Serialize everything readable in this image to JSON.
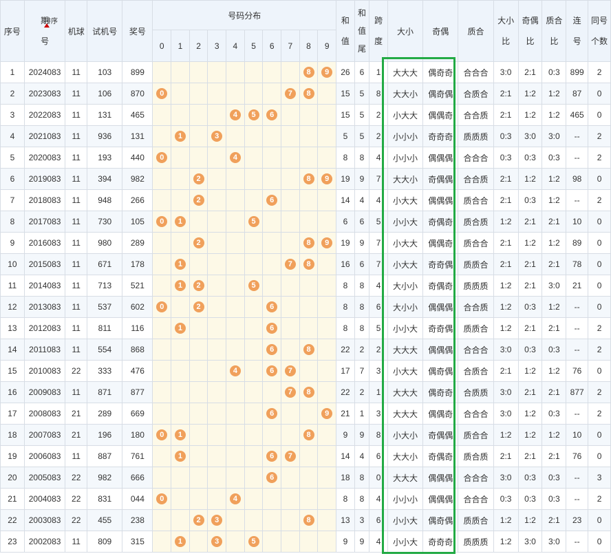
{
  "headers": {
    "seq": "序号",
    "period_1": "期",
    "period_2": "号",
    "sort_label": "排序",
    "machine_ball": "机球",
    "trial": "试机号",
    "prize": "奖号",
    "distribution": "号码分布",
    "digits": [
      "0",
      "1",
      "2",
      "3",
      "4",
      "5",
      "6",
      "7",
      "8",
      "9"
    ],
    "sum_1": "和",
    "sum_2": "值",
    "sumtail_1": "和",
    "sumtail_2": "值",
    "sumtail_3": "尾",
    "span_1": "跨",
    "span_2": "度",
    "big_small": "大小",
    "odd_even": "奇偶",
    "prime_comp": "质合",
    "bs_ratio_1": "大小",
    "bs_ratio_2": "比",
    "oe_ratio_1": "奇偶",
    "oe_ratio_2": "比",
    "pc_ratio_1": "质合",
    "pc_ratio_2": "比",
    "consec_1": "连",
    "consec_2": "号",
    "same_1": "同号",
    "same_2": "个数"
  },
  "rows": [
    {
      "seq": "1",
      "period": "2024083",
      "ball": "11",
      "trial": "103",
      "prize": "899",
      "balls": [
        8,
        9
      ],
      "ball_labels": [
        "8",
        "9"
      ],
      "sum": "26",
      "tail": "6",
      "span": "1",
      "bs": "大大大",
      "oe": "偶奇奇",
      "pc": "合合合",
      "bsr": "3:0",
      "oer": "2:1",
      "pcr": "0:3",
      "consec": "899",
      "same": "2"
    },
    {
      "seq": "2",
      "period": "2023083",
      "ball": "11",
      "trial": "106",
      "prize": "870",
      "balls": [
        0,
        7,
        8
      ],
      "ball_labels": [
        "0",
        "7",
        "8"
      ],
      "sum": "15",
      "tail": "5",
      "span": "8",
      "bs": "大大小",
      "oe": "偶奇偶",
      "pc": "合质合",
      "bsr": "2:1",
      "oer": "1:2",
      "pcr": "1:2",
      "consec": "87",
      "same": "0"
    },
    {
      "seq": "3",
      "period": "2022083",
      "ball": "11",
      "trial": "131",
      "prize": "465",
      "balls": [
        4,
        5,
        6
      ],
      "ball_labels": [
        "4",
        "5",
        "6"
      ],
      "sum": "15",
      "tail": "5",
      "span": "2",
      "bs": "小大大",
      "oe": "偶偶奇",
      "pc": "合合质",
      "bsr": "2:1",
      "oer": "1:2",
      "pcr": "1:2",
      "consec": "465",
      "same": "0"
    },
    {
      "seq": "4",
      "period": "2021083",
      "ball": "11",
      "trial": "936",
      "prize": "131",
      "balls": [
        1,
        3
      ],
      "ball_labels": [
        "1",
        "3"
      ],
      "sum": "5",
      "tail": "5",
      "span": "2",
      "bs": "小小小",
      "oe": "奇奇奇",
      "pc": "质质质",
      "bsr": "0:3",
      "oer": "3:0",
      "pcr": "3:0",
      "consec": "--",
      "same": "2"
    },
    {
      "seq": "5",
      "period": "2020083",
      "ball": "11",
      "trial": "193",
      "prize": "440",
      "balls": [
        0,
        4
      ],
      "ball_labels": [
        "0",
        "4"
      ],
      "sum": "8",
      "tail": "8",
      "span": "4",
      "bs": "小小小",
      "oe": "偶偶偶",
      "pc": "合合合",
      "bsr": "0:3",
      "oer": "0:3",
      "pcr": "0:3",
      "consec": "--",
      "same": "2"
    },
    {
      "seq": "6",
      "period": "2019083",
      "ball": "11",
      "trial": "394",
      "prize": "982",
      "balls": [
        2,
        8,
        9
      ],
      "ball_labels": [
        "2",
        "8",
        "9"
      ],
      "sum": "19",
      "tail": "9",
      "span": "7",
      "bs": "大大小",
      "oe": "奇偶偶",
      "pc": "合合质",
      "bsr": "2:1",
      "oer": "1:2",
      "pcr": "1:2",
      "consec": "98",
      "same": "0"
    },
    {
      "seq": "7",
      "period": "2018083",
      "ball": "11",
      "trial": "948",
      "prize": "266",
      "balls": [
        2,
        6
      ],
      "ball_labels": [
        "2",
        "6"
      ],
      "sum": "14",
      "tail": "4",
      "span": "4",
      "bs": "小大大",
      "oe": "偶偶偶",
      "pc": "质合合",
      "bsr": "2:1",
      "oer": "0:3",
      "pcr": "1:2",
      "consec": "--",
      "same": "2"
    },
    {
      "seq": "8",
      "period": "2017083",
      "ball": "11",
      "trial": "730",
      "prize": "105",
      "balls": [
        0,
        1,
        5
      ],
      "ball_labels": [
        "0",
        "1",
        "5"
      ],
      "sum": "6",
      "tail": "6",
      "span": "5",
      "bs": "小小大",
      "oe": "奇偶奇",
      "pc": "质合质",
      "bsr": "1:2",
      "oer": "2:1",
      "pcr": "2:1",
      "consec": "10",
      "same": "0"
    },
    {
      "seq": "9",
      "period": "2016083",
      "ball": "11",
      "trial": "980",
      "prize": "289",
      "balls": [
        2,
        8,
        9
      ],
      "ball_labels": [
        "2",
        "8",
        "9"
      ],
      "sum": "19",
      "tail": "9",
      "span": "7",
      "bs": "小大大",
      "oe": "偶偶奇",
      "pc": "质合合",
      "bsr": "2:1",
      "oer": "1:2",
      "pcr": "1:2",
      "consec": "89",
      "same": "0"
    },
    {
      "seq": "10",
      "period": "2015083",
      "ball": "11",
      "trial": "671",
      "prize": "178",
      "balls": [
        1,
        7,
        8
      ],
      "ball_labels": [
        "1",
        "7",
        "8"
      ],
      "sum": "16",
      "tail": "6",
      "span": "7",
      "bs": "小大大",
      "oe": "奇奇偶",
      "pc": "质质合",
      "bsr": "2:1",
      "oer": "2:1",
      "pcr": "2:1",
      "consec": "78",
      "same": "0"
    },
    {
      "seq": "11",
      "period": "2014083",
      "ball": "11",
      "trial": "713",
      "prize": "521",
      "balls": [
        1,
        2,
        5
      ],
      "ball_labels": [
        "1",
        "2",
        "5"
      ],
      "sum": "8",
      "tail": "8",
      "span": "4",
      "bs": "大小小",
      "oe": "奇偶奇",
      "pc": "质质质",
      "bsr": "1:2",
      "oer": "2:1",
      "pcr": "3:0",
      "consec": "21",
      "same": "0"
    },
    {
      "seq": "12",
      "period": "2013083",
      "ball": "11",
      "trial": "537",
      "prize": "602",
      "balls": [
        0,
        2,
        6
      ],
      "ball_labels": [
        "0",
        "2",
        "6"
      ],
      "sum": "8",
      "tail": "8",
      "span": "6",
      "bs": "大小小",
      "oe": "偶偶偶",
      "pc": "合合质",
      "bsr": "1:2",
      "oer": "0:3",
      "pcr": "1:2",
      "consec": "--",
      "same": "0"
    },
    {
      "seq": "13",
      "period": "2012083",
      "ball": "11",
      "trial": "811",
      "prize": "116",
      "balls": [
        1,
        6
      ],
      "ball_labels": [
        "1",
        "6"
      ],
      "sum": "8",
      "tail": "8",
      "span": "5",
      "bs": "小小大",
      "oe": "奇奇偶",
      "pc": "质质合",
      "bsr": "1:2",
      "oer": "2:1",
      "pcr": "2:1",
      "consec": "--",
      "same": "2"
    },
    {
      "seq": "14",
      "period": "2011083",
      "ball": "11",
      "trial": "554",
      "prize": "868",
      "balls": [
        6,
        8
      ],
      "ball_labels": [
        "6",
        "8"
      ],
      "sum": "22",
      "tail": "2",
      "span": "2",
      "bs": "大大大",
      "oe": "偶偶偶",
      "pc": "合合合",
      "bsr": "3:0",
      "oer": "0:3",
      "pcr": "0:3",
      "consec": "--",
      "same": "2"
    },
    {
      "seq": "15",
      "period": "2010083",
      "ball": "22",
      "trial": "333",
      "prize": "476",
      "balls": [
        4,
        6,
        7
      ],
      "ball_labels": [
        "4",
        "6",
        "7"
      ],
      "sum": "17",
      "tail": "7",
      "span": "3",
      "bs": "小大大",
      "oe": "偶奇偶",
      "pc": "合质合",
      "bsr": "2:1",
      "oer": "1:2",
      "pcr": "1:2",
      "consec": "76",
      "same": "0"
    },
    {
      "seq": "16",
      "period": "2009083",
      "ball": "11",
      "trial": "871",
      "prize": "877",
      "balls": [
        7,
        8
      ],
      "ball_labels": [
        "7",
        "8"
      ],
      "sum": "22",
      "tail": "2",
      "span": "1",
      "bs": "大大大",
      "oe": "偶奇奇",
      "pc": "合质质",
      "bsr": "3:0",
      "oer": "2:1",
      "pcr": "2:1",
      "consec": "877",
      "same": "2"
    },
    {
      "seq": "17",
      "period": "2008083",
      "ball": "21",
      "trial": "289",
      "prize": "669",
      "balls": [
        6,
        9
      ],
      "ball_labels": [
        "6",
        "9"
      ],
      "sum": "21",
      "tail": "1",
      "span": "3",
      "bs": "大大大",
      "oe": "偶偶奇",
      "pc": "合合合",
      "bsr": "3:0",
      "oer": "1:2",
      "pcr": "0:3",
      "consec": "--",
      "same": "2"
    },
    {
      "seq": "18",
      "period": "2007083",
      "ball": "21",
      "trial": "196",
      "prize": "180",
      "balls": [
        0,
        1,
        8
      ],
      "ball_labels": [
        "0",
        "1",
        "8"
      ],
      "sum": "9",
      "tail": "9",
      "span": "8",
      "bs": "小大小",
      "oe": "奇偶偶",
      "pc": "质合合",
      "bsr": "1:2",
      "oer": "1:2",
      "pcr": "1:2",
      "consec": "10",
      "same": "0"
    },
    {
      "seq": "19",
      "period": "2006083",
      "ball": "11",
      "trial": "887",
      "prize": "761",
      "balls": [
        1,
        6,
        7
      ],
      "ball_labels": [
        "1",
        "6",
        "7"
      ],
      "sum": "14",
      "tail": "4",
      "span": "6",
      "bs": "大大小",
      "oe": "奇偶奇",
      "pc": "质合质",
      "bsr": "2:1",
      "oer": "2:1",
      "pcr": "2:1",
      "consec": "76",
      "same": "0"
    },
    {
      "seq": "20",
      "period": "2005083",
      "ball": "22",
      "trial": "982",
      "prize": "666",
      "balls": [
        6
      ],
      "ball_labels": [
        "6"
      ],
      "sum": "18",
      "tail": "8",
      "span": "0",
      "bs": "大大大",
      "oe": "偶偶偶",
      "pc": "合合合",
      "bsr": "3:0",
      "oer": "0:3",
      "pcr": "0:3",
      "consec": "--",
      "same": "3"
    },
    {
      "seq": "21",
      "period": "2004083",
      "ball": "22",
      "trial": "831",
      "prize": "044",
      "balls": [
        0,
        4
      ],
      "ball_labels": [
        "0",
        "4"
      ],
      "sum": "8",
      "tail": "8",
      "span": "4",
      "bs": "小小小",
      "oe": "偶偶偶",
      "pc": "合合合",
      "bsr": "0:3",
      "oer": "0:3",
      "pcr": "0:3",
      "consec": "--",
      "same": "2"
    },
    {
      "seq": "22",
      "period": "2003083",
      "ball": "22",
      "trial": "455",
      "prize": "238",
      "balls": [
        2,
        3,
        8
      ],
      "ball_labels": [
        "2",
        "3",
        "8"
      ],
      "sum": "13",
      "tail": "3",
      "span": "6",
      "bs": "小小大",
      "oe": "偶奇偶",
      "pc": "质质合",
      "bsr": "1:2",
      "oer": "1:2",
      "pcr": "2:1",
      "consec": "23",
      "same": "0"
    },
    {
      "seq": "23",
      "period": "2002083",
      "ball": "11",
      "trial": "809",
      "prize": "315",
      "balls": [
        1,
        3,
        5
      ],
      "ball_labels": [
        "1",
        "3",
        "5"
      ],
      "sum": "9",
      "tail": "9",
      "span": "4",
      "bs": "小小大",
      "oe": "奇奇奇",
      "pc": "质质质",
      "bsr": "1:2",
      "oer": "3:0",
      "pcr": "3:0",
      "consec": "--",
      "same": "0"
    }
  ],
  "colors": {
    "ball": "#f0a05b",
    "highlight": "#22aa44",
    "header_bg": "#eef4fb",
    "dist_bg": "#fdf9e7",
    "sort_arrow": "#cc0000"
  },
  "icons": {
    "sort": "sort-up-arrow-icon"
  }
}
